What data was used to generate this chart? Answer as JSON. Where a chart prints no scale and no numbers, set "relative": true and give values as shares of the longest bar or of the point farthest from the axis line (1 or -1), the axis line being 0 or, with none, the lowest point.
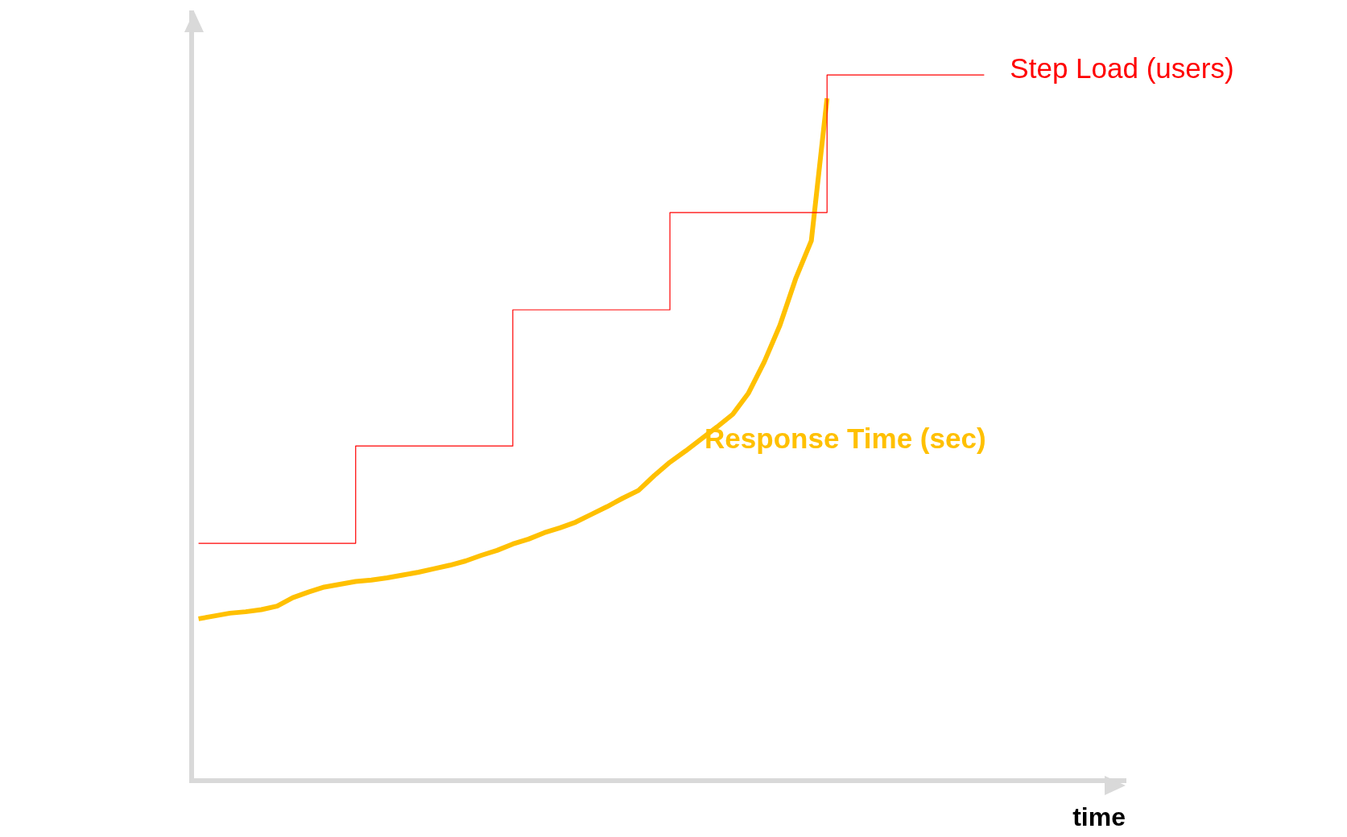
{
  "chart_data": {
    "type": "line",
    "relative": true,
    "xlabel": "time",
    "grid": false,
    "legend": false,
    "marker": "none",
    "tick_labels": false,
    "categories": [
      null,
      null,
      null,
      null,
      null,
      null,
      null,
      null,
      null,
      null,
      null,
      null,
      null,
      null,
      null,
      null,
      null,
      null,
      null,
      null,
      null,
      null,
      null,
      null,
      null,
      null,
      null,
      null,
      null,
      null,
      null,
      null,
      null,
      null,
      null,
      null,
      null,
      null,
      null,
      null,
      null,
      null,
      null,
      null,
      null,
      null,
      null,
      null,
      null,
      null,
      null
    ],
    "series": [
      {
        "name": "Step Load (users)",
        "type": "step",
        "color": "#ff0000",
        "values": [
          0.336,
          0.336,
          0.336,
          0.336,
          0.336,
          0.336,
          0.336,
          0.336,
          0.336,
          0.336,
          0.474,
          0.474,
          0.474,
          0.474,
          0.474,
          0.474,
          0.474,
          0.474,
          0.474,
          0.474,
          0.667,
          0.667,
          0.667,
          0.667,
          0.667,
          0.667,
          0.667,
          0.667,
          0.667,
          0.667,
          0.805,
          0.805,
          0.805,
          0.805,
          0.805,
          0.805,
          0.805,
          0.805,
          0.805,
          0.805,
          1,
          1,
          1,
          1,
          1,
          1,
          1,
          1,
          1,
          1,
          1
        ]
      },
      {
        "name": "Response Time (sec)",
        "type": "line",
        "color": "#ffc000",
        "values": [
          0.229,
          0.233,
          0.237,
          0.239,
          0.242,
          0.247,
          0.259,
          0.267,
          0.274,
          0.278,
          0.282,
          0.284,
          0.287,
          0.291,
          0.295,
          0.3,
          0.305,
          0.311,
          0.319,
          0.326,
          0.335,
          0.342,
          0.351,
          0.358,
          0.366,
          0.377,
          0.388,
          0.4,
          0.411,
          0.432,
          0.451,
          0.467,
          0.484,
          0.501,
          0.519,
          0.549,
          0.593,
          0.645,
          0.711,
          0.765,
          0.967,
          null,
          null,
          null,
          null,
          null,
          null,
          null,
          null,
          null,
          null
        ]
      }
    ]
  }
}
